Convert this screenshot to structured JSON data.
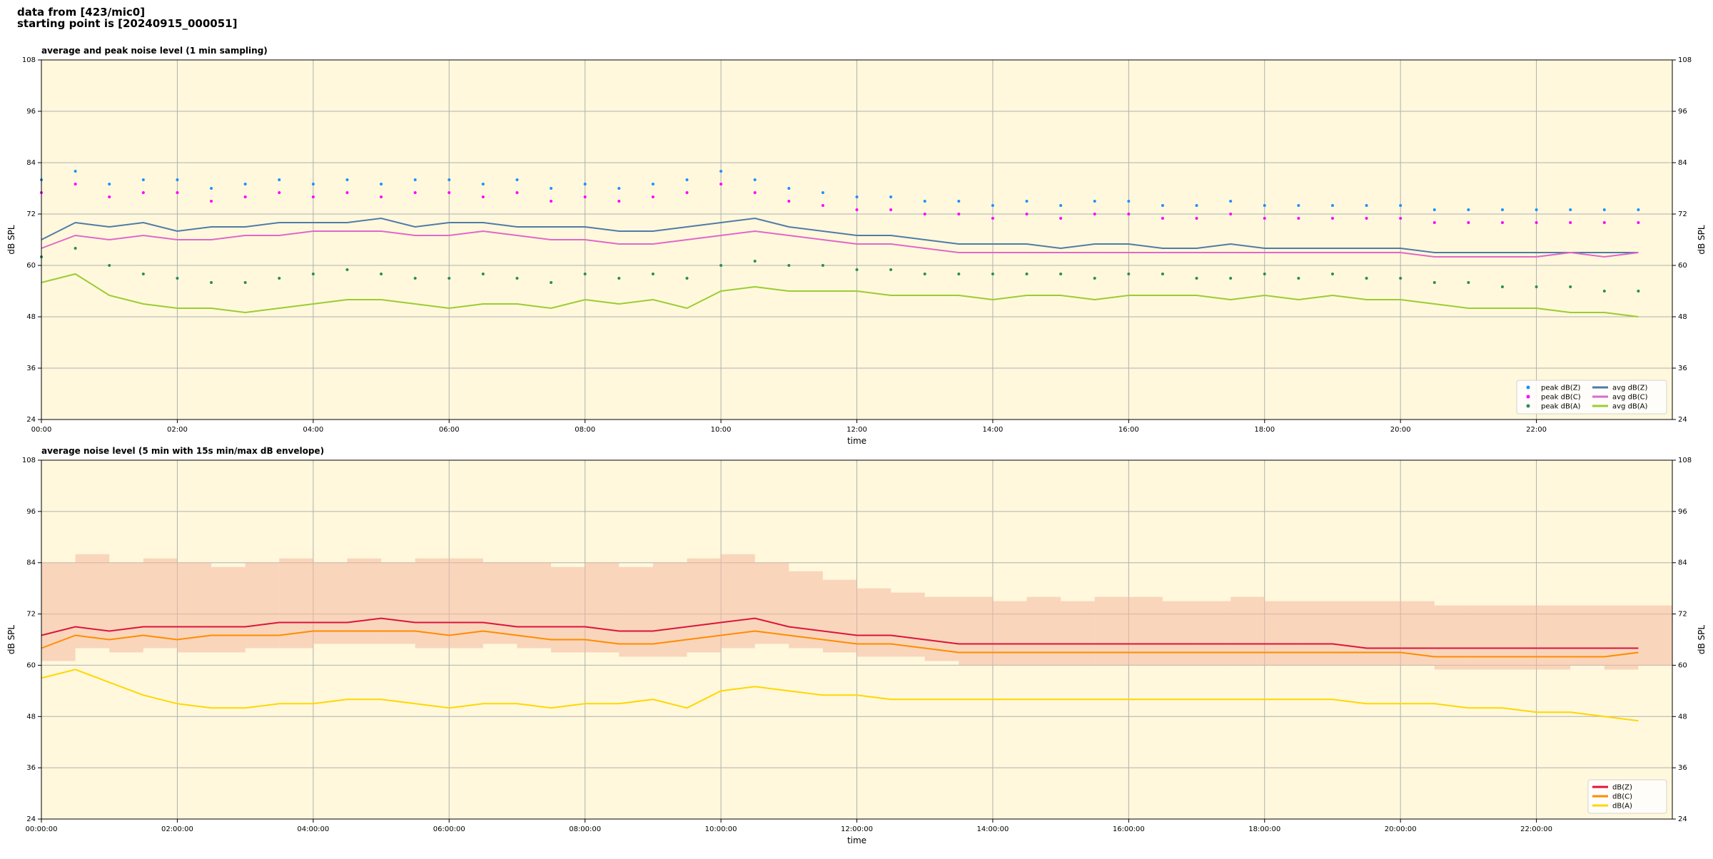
{
  "header": {
    "line1": "data from [423/mic0]",
    "line2": "starting point is [20240915_000051]"
  },
  "chart_data": [
    {
      "type": "line",
      "title": "average and peak noise level (1 min sampling)",
      "xlabel": "time",
      "ylabel": "dB SPL",
      "background": "#fff8dc",
      "grid": true,
      "legend": "lower right",
      "legend_columns": 2,
      "xlim": [
        0,
        24
      ],
      "xticks": [
        {
          "value": 0,
          "label": "00:00"
        },
        {
          "value": 2,
          "label": "02:00"
        },
        {
          "value": 4,
          "label": "04:00"
        },
        {
          "value": 6,
          "label": "06:00"
        },
        {
          "value": 8,
          "label": "08:00"
        },
        {
          "value": 10,
          "label": "10:00"
        },
        {
          "value": 12,
          "label": "12:00"
        },
        {
          "value": 14,
          "label": "14:00"
        },
        {
          "value": 16,
          "label": "16:00"
        },
        {
          "value": 18,
          "label": "18:00"
        },
        {
          "value": 20,
          "label": "20:00"
        },
        {
          "value": 22,
          "label": "22:00"
        }
      ],
      "ylim": [
        24,
        108
      ],
      "yticks": [
        24,
        36,
        48,
        60,
        72,
        84,
        96,
        108
      ],
      "x": [
        0,
        0.5,
        1,
        1.5,
        2,
        2.5,
        3,
        3.5,
        4,
        4.5,
        5,
        5.5,
        6,
        6.5,
        7,
        7.5,
        8,
        8.5,
        9,
        9.5,
        10,
        10.5,
        11,
        11.5,
        12,
        12.5,
        13,
        13.5,
        14,
        14.5,
        15,
        15.5,
        16,
        16.5,
        17,
        17.5,
        18,
        18.5,
        19,
        19.5,
        20,
        20.5,
        21,
        21.5,
        22,
        22.5,
        23,
        23.5
      ],
      "series": [
        {
          "name": "peak dB(Z)",
          "kind": "scatter",
          "color": "#1e90ff",
          "values": [
            80,
            82,
            79,
            80,
            80,
            78,
            79,
            80,
            79,
            80,
            79,
            80,
            80,
            79,
            80,
            78,
            79,
            78,
            79,
            80,
            82,
            80,
            78,
            77,
            76,
            76,
            75,
            75,
            74,
            75,
            74,
            75,
            75,
            74,
            74,
            75,
            74,
            74,
            74,
            74,
            74,
            73,
            73,
            73,
            73,
            73,
            73,
            73
          ]
        },
        {
          "name": "peak dB(C)",
          "kind": "scatter",
          "color": "#ff00ff",
          "values": [
            77,
            79,
            76,
            77,
            77,
            75,
            76,
            77,
            76,
            77,
            76,
            77,
            77,
            76,
            77,
            75,
            76,
            75,
            76,
            77,
            79,
            77,
            75,
            74,
            73,
            73,
            72,
            72,
            71,
            72,
            71,
            72,
            72,
            71,
            71,
            72,
            71,
            71,
            71,
            71,
            71,
            70,
            70,
            70,
            70,
            70,
            70,
            70
          ]
        },
        {
          "name": "peak dB(A)",
          "kind": "scatter",
          "color": "#2e8b57",
          "values": [
            62,
            64,
            60,
            58,
            57,
            56,
            56,
            57,
            58,
            59,
            58,
            57,
            57,
            58,
            57,
            56,
            58,
            57,
            58,
            57,
            60,
            61,
            60,
            60,
            59,
            59,
            58,
            58,
            58,
            58,
            58,
            57,
            58,
            58,
            57,
            57,
            58,
            57,
            58,
            57,
            57,
            56,
            56,
            55,
            55,
            55,
            54,
            54
          ]
        },
        {
          "name": "avg dB(Z)",
          "kind": "line",
          "color": "#4f7ba7",
          "values": [
            66,
            70,
            69,
            70,
            68,
            69,
            69,
            70,
            70,
            70,
            71,
            69,
            70,
            70,
            69,
            69,
            69,
            68,
            68,
            69,
            70,
            71,
            69,
            68,
            67,
            67,
            66,
            65,
            65,
            65,
            64,
            65,
            65,
            64,
            64,
            65,
            64,
            64,
            64,
            64,
            64,
            63,
            63,
            63,
            63,
            63,
            63,
            63
          ]
        },
        {
          "name": "avg dB(C)",
          "kind": "line",
          "color": "#e068c8",
          "values": [
            64,
            67,
            66,
            67,
            66,
            66,
            67,
            67,
            68,
            68,
            68,
            67,
            67,
            68,
            67,
            66,
            66,
            65,
            65,
            66,
            67,
            68,
            67,
            66,
            65,
            65,
            64,
            63,
            63,
            63,
            63,
            63,
            63,
            63,
            63,
            63,
            63,
            63,
            63,
            63,
            63,
            62,
            62,
            62,
            62,
            63,
            62,
            63
          ]
        },
        {
          "name": "avg dB(A)",
          "kind": "line",
          "color": "#9acd32",
          "values": [
            56,
            58,
            53,
            51,
            50,
            50,
            49,
            50,
            51,
            52,
            52,
            51,
            50,
            51,
            51,
            50,
            52,
            51,
            52,
            50,
            54,
            55,
            54,
            54,
            54,
            53,
            53,
            53,
            52,
            53,
            53,
            52,
            53,
            53,
            53,
            52,
            53,
            52,
            53,
            52,
            52,
            51,
            50,
            50,
            50,
            49,
            49,
            48
          ]
        }
      ]
    },
    {
      "type": "line",
      "title": "average noise level (5 min with 15s min/max dB envelope)",
      "xlabel": "time",
      "ylabel": "dB SPL",
      "background": "#fff8dc",
      "grid": true,
      "legend": "lower right",
      "legend_columns": 1,
      "xlim": [
        0,
        24
      ],
      "xticks": [
        {
          "value": 0,
          "label": "00:00:00"
        },
        {
          "value": 2,
          "label": "02:00:00"
        },
        {
          "value": 4,
          "label": "04:00:00"
        },
        {
          "value": 6,
          "label": "06:00:00"
        },
        {
          "value": 8,
          "label": "08:00:00"
        },
        {
          "value": 10,
          "label": "10:00:00"
        },
        {
          "value": 12,
          "label": "12:00:00"
        },
        {
          "value": 14,
          "label": "14:00:00"
        },
        {
          "value": 16,
          "label": "16:00:00"
        },
        {
          "value": 18,
          "label": "18:00:00"
        },
        {
          "value": 20,
          "label": "20:00:00"
        },
        {
          "value": 22,
          "label": "22:00:00"
        }
      ],
      "ylim": [
        24,
        108
      ],
      "yticks": [
        24,
        36,
        48,
        60,
        72,
        84,
        96,
        108
      ],
      "x": [
        0,
        0.5,
        1,
        1.5,
        2,
        2.5,
        3,
        3.5,
        4,
        4.5,
        5,
        5.5,
        6,
        6.5,
        7,
        7.5,
        8,
        8.5,
        9,
        9.5,
        10,
        10.5,
        11,
        11.5,
        12,
        12.5,
        13,
        13.5,
        14,
        14.5,
        15,
        15.5,
        16,
        16.5,
        17,
        17.5,
        18,
        18.5,
        19,
        19.5,
        20,
        20.5,
        21,
        21.5,
        22,
        22.5,
        23,
        23.5
      ],
      "envelope": {
        "color": "#f4b8a0",
        "low": [
          61,
          64,
          63,
          64,
          63,
          63,
          64,
          64,
          65,
          65,
          65,
          64,
          64,
          65,
          64,
          63,
          63,
          62,
          62,
          63,
          64,
          65,
          64,
          63,
          62,
          62,
          61,
          60,
          60,
          60,
          60,
          60,
          60,
          60,
          60,
          60,
          60,
          60,
          60,
          60,
          60,
          59,
          59,
          59,
          59,
          60,
          59,
          60
        ],
        "high": [
          84,
          86,
          84,
          85,
          84,
          83,
          84,
          85,
          84,
          85,
          84,
          85,
          85,
          84,
          84,
          83,
          84,
          83,
          84,
          85,
          86,
          84,
          82,
          80,
          78,
          77,
          76,
          76,
          75,
          76,
          75,
          76,
          76,
          75,
          75,
          76,
          75,
          75,
          75,
          75,
          75,
          74,
          74,
          74,
          74,
          74,
          74,
          74
        ]
      },
      "series": [
        {
          "name": "dB(Z)",
          "kind": "line",
          "color": "#dc143c",
          "values": [
            67,
            69,
            68,
            69,
            69,
            69,
            69,
            70,
            70,
            70,
            71,
            70,
            70,
            70,
            69,
            69,
            69,
            68,
            68,
            69,
            70,
            71,
            69,
            68,
            67,
            67,
            66,
            65,
            65,
            65,
            65,
            65,
            65,
            65,
            65,
            65,
            65,
            65,
            65,
            64,
            64,
            64,
            64,
            64,
            64,
            64,
            64,
            64
          ]
        },
        {
          "name": "dB(C)",
          "kind": "line",
          "color": "#ff8c00",
          "values": [
            64,
            67,
            66,
            67,
            66,
            67,
            67,
            67,
            68,
            68,
            68,
            68,
            67,
            68,
            67,
            66,
            66,
            65,
            65,
            66,
            67,
            68,
            67,
            66,
            65,
            65,
            64,
            63,
            63,
            63,
            63,
            63,
            63,
            63,
            63,
            63,
            63,
            63,
            63,
            63,
            63,
            62,
            62,
            62,
            62,
            62,
            62,
            63
          ]
        },
        {
          "name": "dB(A)",
          "kind": "line",
          "color": "#ffd700",
          "values": [
            57,
            59,
            56,
            53,
            51,
            50,
            50,
            51,
            51,
            52,
            52,
            51,
            50,
            51,
            51,
            50,
            51,
            51,
            52,
            50,
            54,
            55,
            54,
            53,
            53,
            52,
            52,
            52,
            52,
            52,
            52,
            52,
            52,
            52,
            52,
            52,
            52,
            52,
            52,
            51,
            51,
            51,
            50,
            50,
            49,
            49,
            48,
            47
          ]
        }
      ]
    }
  ]
}
